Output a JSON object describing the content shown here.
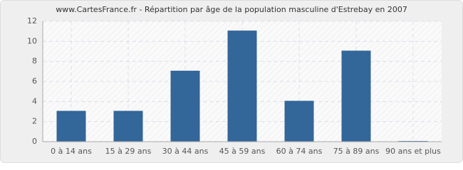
{
  "chart_data": {
    "type": "bar",
    "title": "www.CartesFrance.fr - Répartition par âge de la population masculine d'Estrebay en 2007",
    "categories": [
      "0 à 14 ans",
      "15 à 29 ans",
      "30 à 44 ans",
      "45 à 59 ans",
      "60 à 74 ans",
      "75 à 89 ans",
      "90 ans et plus"
    ],
    "values": [
      3,
      3,
      7,
      11,
      4,
      9,
      0
    ],
    "color": "#336699",
    "ylim": [
      0,
      12
    ],
    "yticks": [
      0,
      2,
      4,
      6,
      8,
      10,
      12
    ],
    "grid": true
  }
}
